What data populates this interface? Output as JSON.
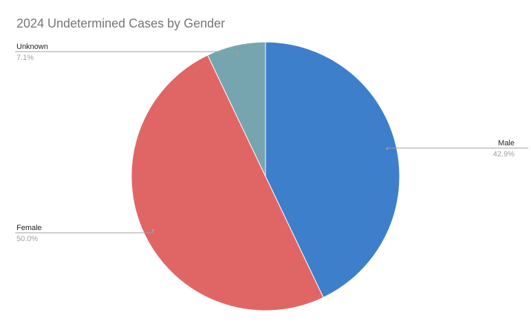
{
  "chart_data": {
    "type": "pie",
    "title": "2024 Undetermined Cases by Gender",
    "slices": [
      {
        "label": "Male",
        "value": 42.9,
        "display": "42.9%",
        "color": "#3D7FCB"
      },
      {
        "label": "Female",
        "value": 50.0,
        "display": "50.0%",
        "color": "#E06666"
      },
      {
        "label": "Unknown",
        "value": 7.1,
        "display": "7.1%",
        "color": "#76A5AF"
      }
    ],
    "start_angle_deg": 0,
    "direction": "clockwise",
    "legend": "none",
    "label_style": "callout lines with label and percent"
  }
}
